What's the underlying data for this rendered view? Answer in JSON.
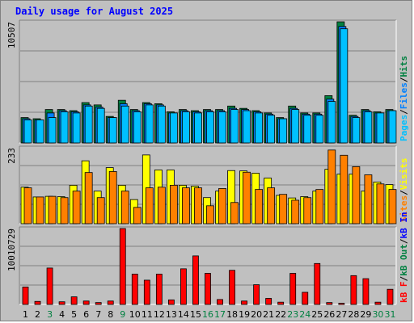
{
  "title": "Daily usage for August 2025",
  "colors": {
    "hits": "#008040",
    "files": "#0080ff",
    "pages": "#00c0ff",
    "visits": "#ffff00",
    "sites": "#ff8000",
    "kb_in": "#0000ff",
    "kb_out": "#008040",
    "kb_f": "#ff0000",
    "weekday_label": "#000000",
    "weekend_label": "#008040"
  },
  "chart_data": [
    {
      "type": "bar",
      "panel": "hits-files-pages",
      "ymax_label": "10507",
      "ylim": [
        0,
        10507
      ],
      "legend": [
        "Pages",
        "Files",
        "Hits"
      ],
      "x": [
        "1",
        "2",
        "3",
        "4",
        "5",
        "6",
        "7",
        "8",
        "9",
        "10",
        "11",
        "12",
        "13",
        "14",
        "15",
        "16",
        "17",
        "18",
        "19",
        "20",
        "21",
        "22",
        "23",
        "24",
        "25",
        "26",
        "27",
        "28",
        "29",
        "30",
        "31"
      ],
      "series": [
        {
          "name": "Hits",
          "values": [
            2200,
            2100,
            2900,
            2900,
            2800,
            3500,
            3300,
            2300,
            3700,
            2900,
            3500,
            3400,
            2700,
            2900,
            2800,
            2900,
            2900,
            3200,
            3000,
            2800,
            2600,
            2200,
            3200,
            2600,
            2600,
            4100,
            10507,
            2400,
            2900,
            2700,
            2900
          ]
        },
        {
          "name": "Files",
          "values": [
            2100,
            2000,
            2600,
            2800,
            2700,
            3300,
            3100,
            2200,
            3400,
            2800,
            3400,
            3300,
            2600,
            2800,
            2700,
            2800,
            2800,
            3000,
            2900,
            2700,
            2500,
            2100,
            3000,
            2500,
            2500,
            3800,
            10100,
            2300,
            2800,
            2600,
            2800
          ]
        },
        {
          "name": "Pages",
          "values": [
            2000,
            2000,
            2200,
            2700,
            2600,
            3200,
            3000,
            2200,
            3200,
            2700,
            3300,
            3200,
            2600,
            2700,
            2600,
            2700,
            2700,
            2900,
            2800,
            2600,
            2400,
            2100,
            2900,
            2400,
            2400,
            3600,
            9900,
            2200,
            2700,
            2600,
            2800
          ]
        }
      ]
    },
    {
      "type": "bar",
      "panel": "visits-sites",
      "ymax_label": "233",
      "ylim": [
        0,
        233
      ],
      "legend": [
        "Sites",
        "Visits"
      ],
      "x": [
        "1",
        "2",
        "3",
        "4",
        "5",
        "6",
        "7",
        "8",
        "9",
        "10",
        "11",
        "12",
        "13",
        "14",
        "15",
        "16",
        "17",
        "18",
        "19",
        "20",
        "21",
        "22",
        "23",
        "24",
        "25",
        "26",
        "27",
        "28",
        "29",
        "30",
        "31"
      ],
      "series": [
        {
          "name": "Visits",
          "values": [
            112,
            82,
            84,
            83,
            118,
            193,
            100,
            172,
            118,
            74,
            211,
            165,
            165,
            118,
            115,
            80,
            100,
            163,
            162,
            155,
            140,
            87,
            79,
            83,
            100,
            167,
            152,
            152,
            100,
            128,
            120
          ]
        },
        {
          "name": "Sites",
          "values": [
            110,
            82,
            84,
            80,
            100,
            157,
            80,
            160,
            100,
            50,
            110,
            112,
            118,
            110,
            110,
            55,
            108,
            65,
            158,
            105,
            110,
            90,
            72,
            80,
            105,
            226,
            210,
            175,
            150,
            122,
            105
          ]
        }
      ]
    },
    {
      "type": "bar",
      "panel": "kbytes",
      "ymax_label": "10010729",
      "ylim": [
        0,
        10010729
      ],
      "legend": [
        "kB F",
        "kB Out",
        "kB In"
      ],
      "x": [
        "1",
        "2",
        "3",
        "4",
        "5",
        "6",
        "7",
        "8",
        "9",
        "10",
        "11",
        "12",
        "13",
        "14",
        "15",
        "16",
        "17",
        "18",
        "19",
        "20",
        "21",
        "22",
        "23",
        "24",
        "25",
        "26",
        "27",
        "28",
        "29",
        "30",
        "31"
      ],
      "series": [
        {
          "name": "kB F",
          "values": [
            2300000,
            400000,
            4800000,
            350000,
            1000000,
            450000,
            250000,
            450000,
            10010729,
            4000000,
            3200000,
            4000000,
            600000,
            4700000,
            6400000,
            4100000,
            650000,
            4500000,
            450000,
            2600000,
            800000,
            300000,
            4100000,
            1600000,
            5400000,
            250000,
            150000,
            3800000,
            3400000,
            300000,
            2000000
          ]
        }
      ]
    }
  ],
  "weekend_days": [
    "3",
    "9",
    "16",
    "17",
    "23",
    "24",
    "30",
    "31"
  ]
}
